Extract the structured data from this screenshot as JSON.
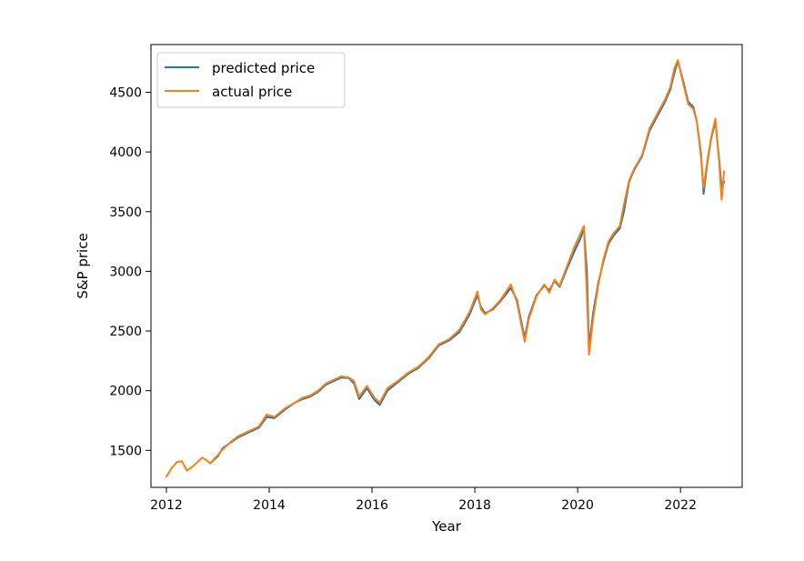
{
  "colors": {
    "predicted": "#1f77b4",
    "actual": "#ff7f0e",
    "axes": "#000000",
    "legend_border": "#cccccc"
  },
  "chart_data": {
    "type": "line",
    "title": "",
    "xlabel": "Year",
    "ylabel": "S&P price",
    "xlim": [
      2011.7,
      2023.2
    ],
    "ylim": [
      1190,
      4900
    ],
    "x_ticks": [
      2012,
      2014,
      2016,
      2018,
      2020,
      2022
    ],
    "x_tick_labels": [
      "2012",
      "2014",
      "2016",
      "2018",
      "2020",
      "2022"
    ],
    "y_ticks": [
      1500,
      2000,
      2500,
      3000,
      3500,
      4000,
      4500
    ],
    "y_tick_labels": [
      "1500",
      "2000",
      "2500",
      "3000",
      "3500",
      "4000",
      "4500"
    ],
    "grid": false,
    "legend": {
      "position": "top-left",
      "entries": [
        "predicted price",
        "actual price"
      ]
    },
    "series": [
      {
        "name": "predicted price",
        "x": [
          2012.85,
          2013.0,
          2013.1,
          2013.25,
          2013.4,
          2013.6,
          2013.8,
          2013.95,
          2014.1,
          2014.3,
          2014.5,
          2014.65,
          2014.8,
          2014.95,
          2015.1,
          2015.25,
          2015.4,
          2015.55,
          2015.65,
          2015.75,
          2015.9,
          2016.05,
          2016.15,
          2016.3,
          2016.5,
          2016.7,
          2016.9,
          2017.1,
          2017.3,
          2017.5,
          2017.7,
          2017.9,
          2018.05,
          2018.12,
          2018.2,
          2018.35,
          2018.5,
          2018.7,
          2018.82,
          2018.97,
          2019.05,
          2019.2,
          2019.35,
          2019.45,
          2019.55,
          2019.65,
          2019.8,
          2019.95,
          2020.07,
          2020.12,
          2020.18,
          2020.22,
          2020.3,
          2020.4,
          2020.5,
          2020.6,
          2020.7,
          2020.82,
          2020.9,
          2021.0,
          2021.1,
          2021.25,
          2021.4,
          2021.55,
          2021.7,
          2021.8,
          2021.88,
          2021.95,
          2022.05,
          2022.15,
          2022.25,
          2022.32,
          2022.4,
          2022.45,
          2022.52,
          2022.6,
          2022.68,
          2022.75,
          2022.8,
          2022.85
        ],
        "values": [
          1390,
          1450,
          1520,
          1565,
          1610,
          1650,
          1690,
          1780,
          1770,
          1840,
          1900,
          1930,
          1950,
          1990,
          2050,
          2080,
          2110,
          2105,
          2060,
          1930,
          2020,
          1920,
          1880,
          2000,
          2070,
          2140,
          2190,
          2270,
          2380,
          2420,
          2490,
          2640,
          2800,
          2700,
          2650,
          2680,
          2750,
          2860,
          2760,
          2440,
          2620,
          2800,
          2880,
          2840,
          2920,
          2870,
          3030,
          3180,
          3290,
          3370,
          3000,
          2360,
          2650,
          2900,
          3080,
          3230,
          3300,
          3360,
          3500,
          3750,
          3850,
          3960,
          4180,
          4300,
          4420,
          4520,
          4660,
          4760,
          4600,
          4420,
          4380,
          4250,
          3980,
          3650,
          3900,
          4120,
          4250,
          3950,
          3700,
          3750
        ]
      },
      {
        "name": "actual price",
        "x": [
          2012.0,
          2012.1,
          2012.2,
          2012.3,
          2012.4,
          2012.5,
          2012.6,
          2012.7,
          2012.8,
          2012.85,
          2013.0,
          2013.1,
          2013.25,
          2013.4,
          2013.6,
          2013.8,
          2013.95,
          2014.1,
          2014.3,
          2014.5,
          2014.65,
          2014.8,
          2014.95,
          2015.1,
          2015.25,
          2015.4,
          2015.55,
          2015.65,
          2015.75,
          2015.9,
          2016.05,
          2016.15,
          2016.3,
          2016.5,
          2016.7,
          2016.9,
          2017.1,
          2017.3,
          2017.5,
          2017.7,
          2017.9,
          2018.05,
          2018.12,
          2018.2,
          2018.35,
          2018.5,
          2018.7,
          2018.82,
          2018.97,
          2019.05,
          2019.2,
          2019.35,
          2019.45,
          2019.55,
          2019.65,
          2019.8,
          2019.95,
          2020.07,
          2020.12,
          2020.18,
          2020.22,
          2020.3,
          2020.4,
          2020.5,
          2020.6,
          2020.7,
          2020.82,
          2020.9,
          2021.0,
          2021.1,
          2021.25,
          2021.4,
          2021.55,
          2021.7,
          2021.8,
          2021.88,
          2021.95,
          2022.05,
          2022.15,
          2022.25,
          2022.32,
          2022.4,
          2022.45,
          2022.52,
          2022.6,
          2022.68,
          2022.75,
          2022.8,
          2022.85
        ],
        "values": [
          1280,
          1350,
          1400,
          1410,
          1330,
          1360,
          1400,
          1440,
          1410,
          1390,
          1460,
          1510,
          1570,
          1620,
          1660,
          1700,
          1800,
          1780,
          1850,
          1900,
          1940,
          1960,
          2000,
          2060,
          2090,
          2120,
          2110,
          2080,
          1950,
          2040,
          1940,
          1900,
          2020,
          2080,
          2150,
          2200,
          2280,
          2390,
          2430,
          2510,
          2660,
          2830,
          2680,
          2640,
          2690,
          2760,
          2890,
          2740,
          2410,
          2600,
          2790,
          2890,
          2820,
          2930,
          2880,
          3050,
          3220,
          3330,
          3380,
          2800,
          2300,
          2600,
          2880,
          3100,
          3250,
          3320,
          3380,
          3560,
          3760,
          3860,
          3970,
          4200,
          4320,
          4440,
          4540,
          4700,
          4770,
          4580,
          4400,
          4360,
          4250,
          3950,
          3700,
          3920,
          4130,
          4280,
          3920,
          3600,
          3840
        ]
      }
    ]
  }
}
